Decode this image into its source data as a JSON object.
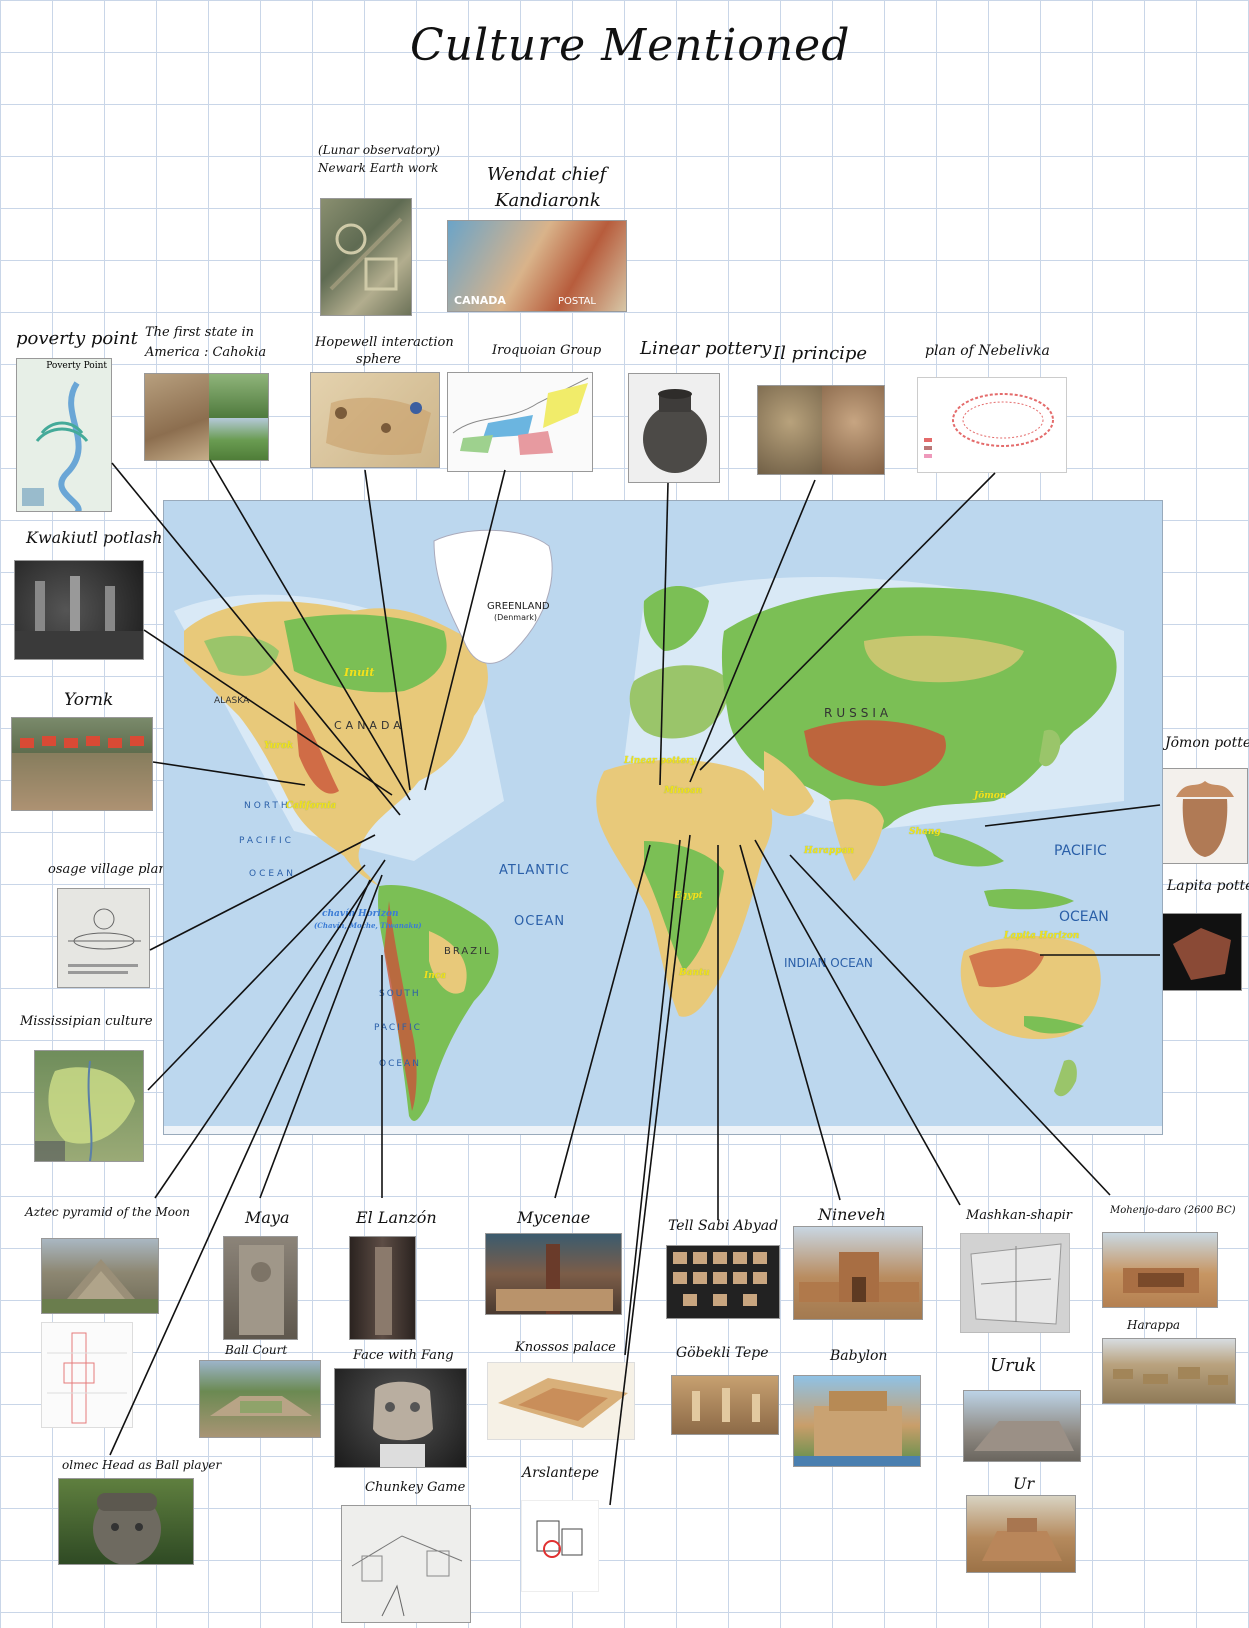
{
  "title": "Culture Mentioned",
  "labels": {
    "lunar": "(Lunar observatory)",
    "newark": "Newark Earth work",
    "wendat1": "Wendat chief",
    "wendat2": "Kandiaronk",
    "poverty": "poverty point",
    "cahokia1": "The first state in",
    "cahokia2": "America : Cahokia",
    "hopewell1": "Hopewell interaction",
    "hopewell2": "sphere",
    "iroquoian": "Iroquoian Group",
    "linear": "Linear pottery",
    "ilprincipe": "Il principe",
    "nebelivka": "plan of Nebelivka",
    "kwakiutl": "Kwakiutl potlash",
    "yornk": "Yornk",
    "osage": "osage village plan",
    "mississippian": "Mississipian culture",
    "jomon": "Jōmon pottery",
    "lapita": "Lapita pottery",
    "aztec": "Aztec pyramid of the Moon",
    "maya": "Maya",
    "ballcourt": "Ball Court",
    "ellanzon": "El Lanzón",
    "facefang": "Face with Fang",
    "chunkey": "Chunkey Game",
    "olmec": "olmec Head as Ball player",
    "mycenae": "Mycenae",
    "knossos": "Knossos palace",
    "arslantepe": "Arslantepe",
    "tellsabi": "Tell Sabi Abyad",
    "gobekli": "Göbekli Tepe",
    "nineveh": "Nineveh",
    "babylon": "Babylon",
    "mashkan": "Mashkan-shapir",
    "uruk": "Uruk",
    "ur": "Ur",
    "mohenjo": "Mohenjo-daro (2600 BC)",
    "harappa": "Harappa"
  },
  "thumb_text": {
    "poverty_map_title": "Poverty Point",
    "canada_stamp": "CANADA",
    "stamp_value": "POSTAL"
  },
  "map": {
    "greenland": "GREENLAND",
    "greenland_sub": "(Denmark)",
    "russia": "RUSSIA",
    "canada": "CANADA",
    "atlantic": "ATLANTIC",
    "atlantic_ocean": "OCEAN",
    "pacific": "PACIFIC",
    "pacific_ocean": "OCEAN",
    "indian": "INDIAN OCEAN",
    "north_pacific": "NORTH",
    "pacific_left": "PACIFIC",
    "ocean_left": "OCEAN",
    "south": "SOUTH",
    "pacific_s": "PACIFIC",
    "ocean_s": "OCEAN",
    "brazil": "BRAZIL",
    "alaska": "ALASKA"
  },
  "map_annotations": {
    "inuit": "Inuit",
    "yurok": "Yurok",
    "california": "California",
    "chavin": "chavín Horizon",
    "chavin_sub": "(Chavín, Moche, Tiwanaku)",
    "inca": "Inca",
    "shang": "Shang",
    "lapita_horizon": "Lapita Horizon",
    "bantu": "Bantu",
    "minoan": "Minoan",
    "linear_map": "Linear pottery",
    "harappan": "Harappan",
    "japan": "Jōmon",
    "egypt": "Egypt"
  },
  "colors": {
    "ocean": "#bcd7ee",
    "land_green": "#7bbf55",
    "land_tan": "#e8c97a",
    "land_red": "#c9553a",
    "grid": "#c9d6e8",
    "annotation_yellow": "#f3e21a"
  }
}
